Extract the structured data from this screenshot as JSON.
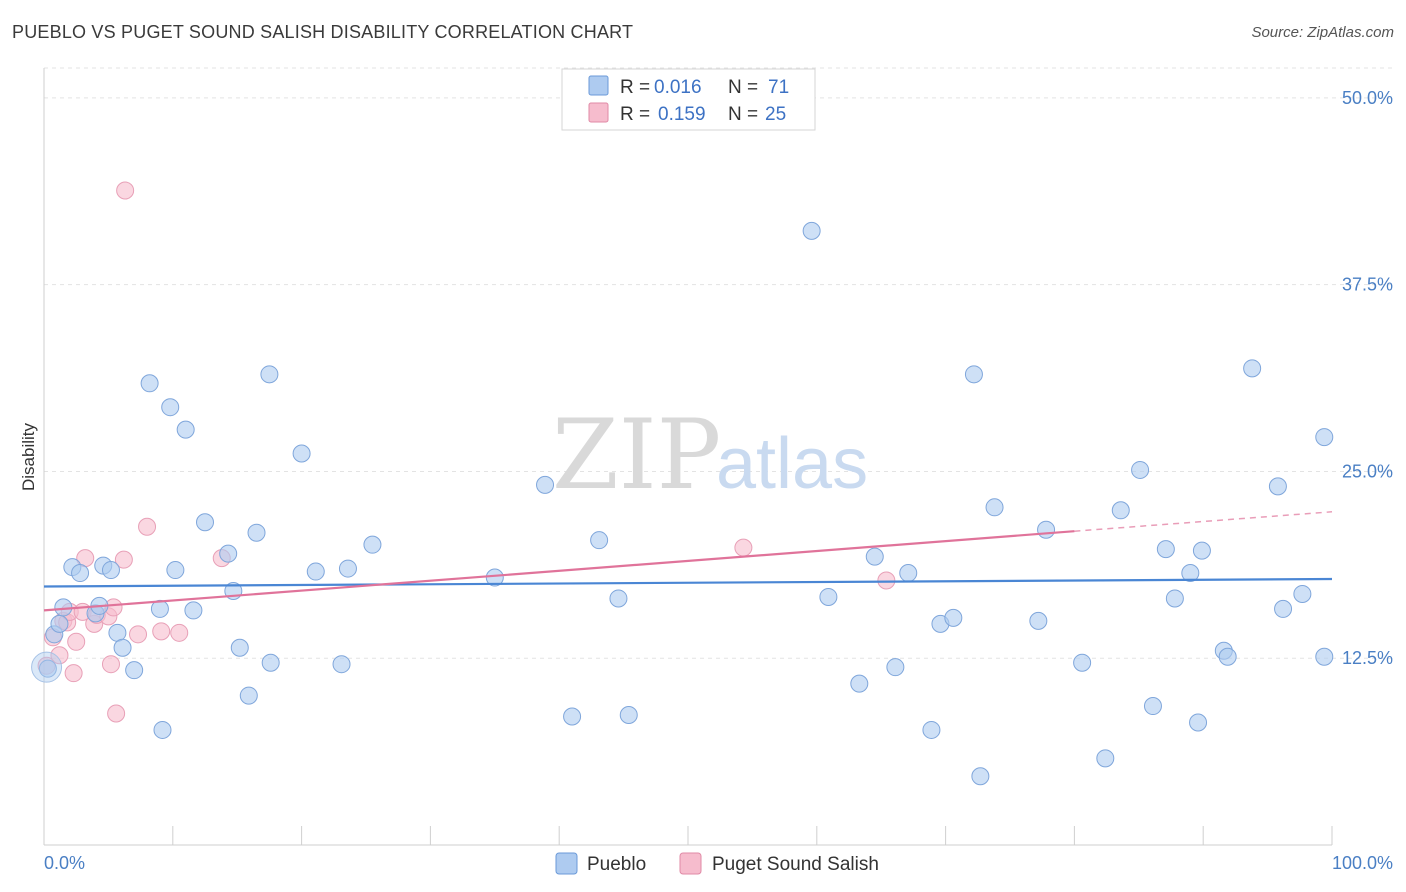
{
  "header": {
    "title": "PUEBLO VS PUGET SOUND SALISH DISABILITY CORRELATION CHART",
    "source": "Source: ZipAtlas.com"
  },
  "watermark": {
    "part1": "ZIP",
    "part2": "atlas"
  },
  "legend": {
    "rows": [
      {
        "r_label": "R =",
        "r_value": "0.016",
        "n_label": "N =",
        "n_value": "71",
        "color": "#aecbf0"
      },
      {
        "r_label": "R =",
        "r_value": "0.159",
        "n_label": "N =",
        "n_value": "25",
        "color": "#f6bccd"
      }
    ]
  },
  "bottom_legend": [
    {
      "label": "Pueblo",
      "color": "#aecbf0"
    },
    {
      "label": "Puget Sound Salish",
      "color": "#f6bccd"
    }
  ],
  "chart_data": {
    "type": "scatter",
    "title": "PUEBLO VS PUGET SOUND SALISH DISABILITY CORRELATION CHART",
    "ylabel": "Disability",
    "xlabel": "",
    "xlim": [
      0,
      100
    ],
    "ylim": [
      0,
      52
    ],
    "y_ticks": [
      12.5,
      25.0,
      37.5,
      50.0
    ],
    "y_tick_labels": [
      "12.5%",
      "25.0%",
      "37.5%",
      "50.0%"
    ],
    "x_tick_labels": [
      "0.0%",
      "100.0%"
    ],
    "grid": true,
    "legend_position": "top-center",
    "colors": {
      "pueblo": "#4a86d4",
      "salish": "#e0739a",
      "pueblo_fill": "#aecbf0",
      "salish_fill": "#f6bccd"
    },
    "series": [
      {
        "name": "Pueblo",
        "trend": [
          [
            0,
            17.3
          ],
          [
            100,
            17.8
          ]
        ],
        "points": [
          [
            0.3,
            11.8
          ],
          [
            0.8,
            14.1
          ],
          [
            1.2,
            14.8
          ],
          [
            1.5,
            15.9
          ],
          [
            2.2,
            18.6
          ],
          [
            2.8,
            18.2
          ],
          [
            4.0,
            15.5
          ],
          [
            4.3,
            16.0
          ],
          [
            4.6,
            18.7
          ],
          [
            5.2,
            18.4
          ],
          [
            5.7,
            14.2
          ],
          [
            6.1,
            13.2
          ],
          [
            7.0,
            11.7
          ],
          [
            8.2,
            30.9
          ],
          [
            9.0,
            15.8
          ],
          [
            9.2,
            7.7
          ],
          [
            9.8,
            29.3
          ],
          [
            10.2,
            18.4
          ],
          [
            11.0,
            27.8
          ],
          [
            11.6,
            15.7
          ],
          [
            12.5,
            21.6
          ],
          [
            14.3,
            19.5
          ],
          [
            14.7,
            17.0
          ],
          [
            15.2,
            13.2
          ],
          [
            15.9,
            10.0
          ],
          [
            16.5,
            20.9
          ],
          [
            17.5,
            31.5
          ],
          [
            17.6,
            12.2
          ],
          [
            20.0,
            26.2
          ],
          [
            21.1,
            18.3
          ],
          [
            23.1,
            12.1
          ],
          [
            23.6,
            18.5
          ],
          [
            25.5,
            20.1
          ],
          [
            35.0,
            17.9
          ],
          [
            38.9,
            24.1
          ],
          [
            41.0,
            8.6
          ],
          [
            43.1,
            20.4
          ],
          [
            44.6,
            16.5
          ],
          [
            45.4,
            8.7
          ],
          [
            59.6,
            41.1
          ],
          [
            60.9,
            16.6
          ],
          [
            63.3,
            10.8
          ],
          [
            64.5,
            19.3
          ],
          [
            66.1,
            11.9
          ],
          [
            67.1,
            18.2
          ],
          [
            68.9,
            7.7
          ],
          [
            69.6,
            14.8
          ],
          [
            70.6,
            15.2
          ],
          [
            72.2,
            31.5
          ],
          [
            72.7,
            4.6
          ],
          [
            73.8,
            22.6
          ],
          [
            77.2,
            15.0
          ],
          [
            77.8,
            21.1
          ],
          [
            80.6,
            12.2
          ],
          [
            82.4,
            5.8
          ],
          [
            83.6,
            22.4
          ],
          [
            85.1,
            25.1
          ],
          [
            86.1,
            9.3
          ],
          [
            87.1,
            19.8
          ],
          [
            87.8,
            16.5
          ],
          [
            89.0,
            18.2
          ],
          [
            89.6,
            8.2
          ],
          [
            89.9,
            19.7
          ],
          [
            91.6,
            13.0
          ],
          [
            91.9,
            12.6
          ],
          [
            93.8,
            31.9
          ],
          [
            95.8,
            24.0
          ],
          [
            96.2,
            15.8
          ],
          [
            97.7,
            16.8
          ],
          [
            99.4,
            27.3
          ],
          [
            99.4,
            12.6
          ]
        ]
      },
      {
        "name": "Puget Sound Salish",
        "trend": [
          [
            0,
            15.7
          ],
          [
            80,
            21.0
          ]
        ],
        "trend_dashed": [
          [
            80,
            21.0
          ],
          [
            100,
            22.3
          ]
        ],
        "points": [
          [
            0.2,
            12.0
          ],
          [
            0.7,
            13.9
          ],
          [
            1.2,
            12.7
          ],
          [
            1.5,
            15.0
          ],
          [
            1.8,
            14.9
          ],
          [
            2.0,
            15.6
          ],
          [
            2.3,
            11.5
          ],
          [
            2.5,
            13.6
          ],
          [
            3.0,
            15.6
          ],
          [
            3.2,
            19.2
          ],
          [
            3.9,
            14.8
          ],
          [
            4.1,
            15.4
          ],
          [
            5.0,
            15.3
          ],
          [
            5.2,
            12.1
          ],
          [
            5.4,
            15.9
          ],
          [
            5.6,
            8.8
          ],
          [
            6.2,
            19.1
          ],
          [
            6.3,
            43.8
          ],
          [
            7.3,
            14.1
          ],
          [
            8.0,
            21.3
          ],
          [
            9.1,
            14.3
          ],
          [
            10.5,
            14.2
          ],
          [
            13.8,
            19.2
          ],
          [
            54.3,
            19.9
          ],
          [
            65.4,
            17.7
          ]
        ]
      }
    ]
  }
}
